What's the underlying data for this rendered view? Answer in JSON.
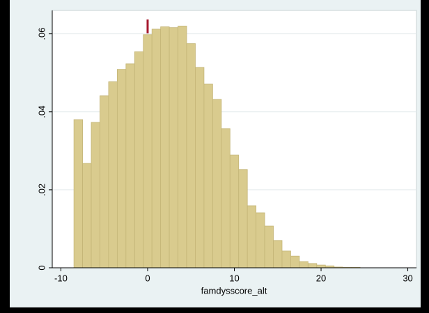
{
  "chart_data": {
    "type": "histogram",
    "x_label": "famdysscore_alt",
    "bins": [
      -8.5,
      -7.5,
      -6.5,
      -5.5,
      -4.5,
      -3.5,
      -2.5,
      -1.5,
      -0.5,
      0.5,
      1.5,
      2.5,
      3.5,
      4.5,
      5.5,
      6.5,
      7.5,
      8.5,
      9.5,
      10.5,
      11.5,
      12.5,
      13.5,
      14.5,
      15.5,
      16.5,
      17.5,
      18.5,
      19.5,
      20.5,
      21.5,
      22.5,
      23.5,
      24.5
    ],
    "values": [
      0.038,
      0.0268,
      0.0373,
      0.0441,
      0.0477,
      0.0509,
      0.0523,
      0.0554,
      0.0598,
      0.0612,
      0.0618,
      0.0616,
      0.062,
      0.0575,
      0.0514,
      0.0471,
      0.0432,
      0.0357,
      0.0289,
      0.0252,
      0.0159,
      0.0141,
      0.0107,
      0.007,
      0.0043,
      0.003,
      0.0016,
      0.0011,
      0.0007,
      0.0005,
      0.0002,
      0.0001,
      0.0001
    ],
    "color": "#d9cb8e",
    "vline": 0,
    "vline_color": "#a6192e",
    "xlim": [
      -11,
      31
    ],
    "xticks": [
      -10,
      0,
      10,
      20,
      30
    ],
    "ylim": [
      0,
      0.066
    ],
    "yticks": [
      0,
      {
        "value": 0.02,
        "label": ".02"
      },
      {
        "value": 0.04,
        "label": ".04"
      },
      {
        "value": 0.06,
        "label": ".06"
      }
    ],
    "grid": true
  }
}
